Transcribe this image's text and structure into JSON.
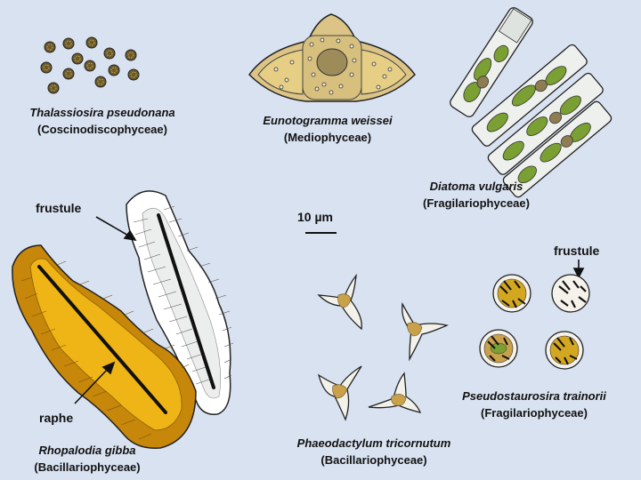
{
  "species": [
    {
      "name": "Thalassiosira pseudonana",
      "class": "(Coscinodiscophyceae)"
    },
    {
      "name": "Eunotogramma weissei",
      "class": "(Mediophyceae)"
    },
    {
      "name": "Diatoma vulgaris",
      "class": "(Fragilariophyceae)"
    },
    {
      "name": "Rhopalodia gibba",
      "class": "(Bacillariophyceae)"
    },
    {
      "name": "Phaeodactylum tricornutum",
      "class": "(Bacillariophyceae)"
    },
    {
      "name": "Pseudostaurosira trainorii",
      "class": "(Fragilariophyceae)"
    }
  ],
  "labels": {
    "frustule": "frustule",
    "frustule_2": "frustule",
    "raphe": "raphe",
    "scale_bar": "10 µm"
  },
  "colors": {
    "background": "#d9e2f1",
    "gold": "#e3a612",
    "tan": "#dcc487",
    "green": "#7a9f32",
    "brown": "#8f7d52",
    "outline": "#111111"
  }
}
